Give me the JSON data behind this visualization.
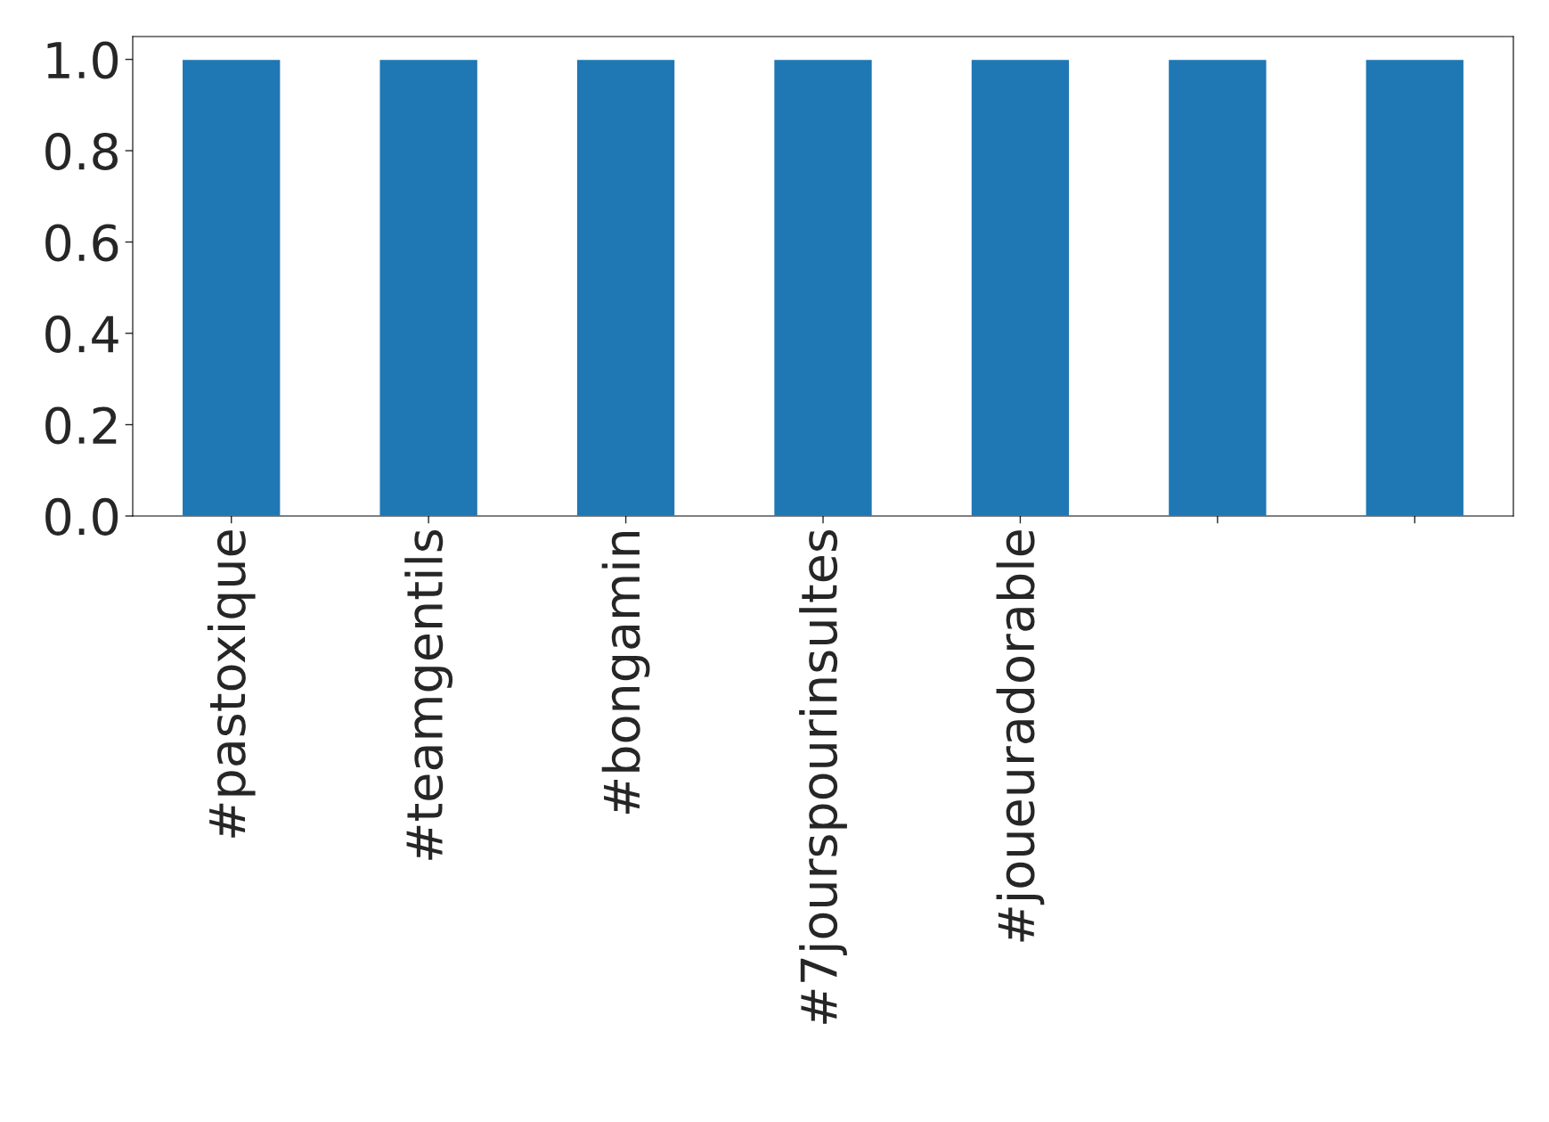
{
  "chart_data": {
    "type": "bar",
    "categories": [
      "#pastoxique",
      "#teamgentils",
      "#bongamin",
      "#7jourspourinsultes",
      "#joueuradorable",
      null,
      null
    ],
    "values": [
      1.0,
      1.0,
      1.0,
      1.0,
      1.0,
      1.0,
      1.0
    ],
    "color": "#1f77b4",
    "ylim": [
      0,
      1.05
    ],
    "yticks": [
      {
        "value": 0,
        "label": "0.0"
      },
      {
        "value": 0.2,
        "label": "0.2"
      },
      {
        "value": 0.4,
        "label": "0.4"
      },
      {
        "value": 0.6,
        "label": "0.6"
      },
      {
        "value": 0.8,
        "label": "0.8"
      },
      {
        "value": 1.0,
        "label": "1.0"
      }
    ],
    "grid": false,
    "legend": false
  }
}
